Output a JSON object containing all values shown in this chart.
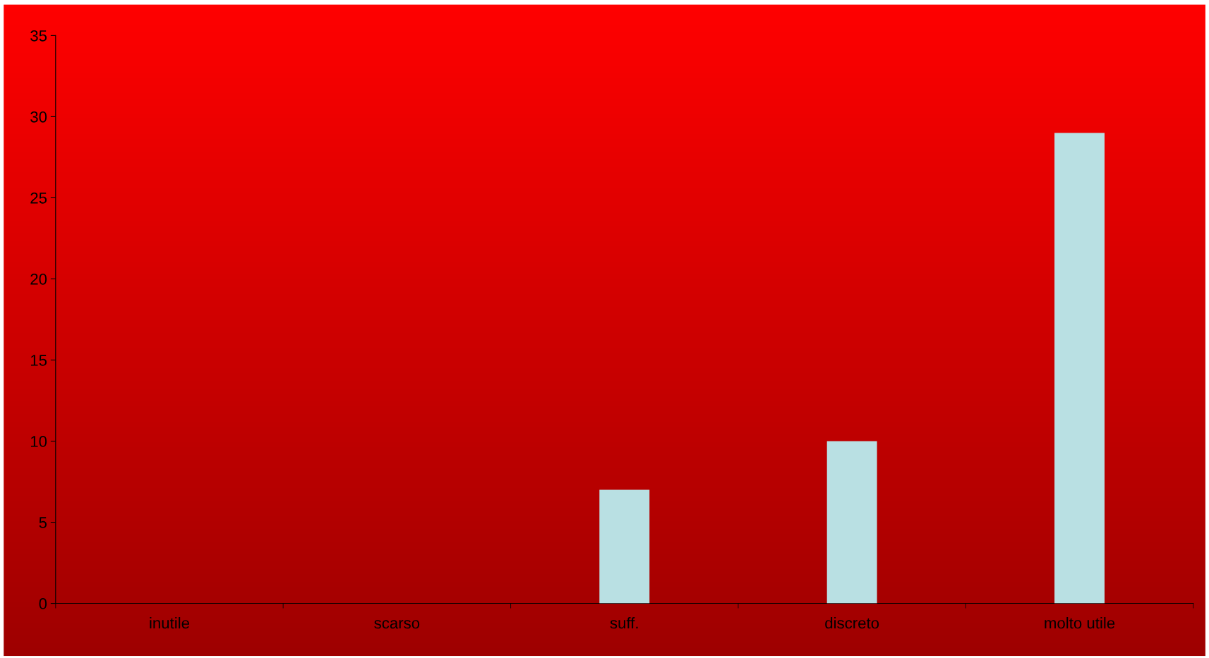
{
  "chart_data": {
    "type": "bar",
    "categories": [
      "inutile",
      "scarso",
      "suff.",
      "discreto",
      "molto utile"
    ],
    "values": [
      0,
      0,
      7,
      10,
      29
    ],
    "color": "#b9e0e3",
    "ylim": [
      0,
      35
    ],
    "yticks": [
      0,
      5,
      10,
      15,
      20,
      25,
      30,
      35
    ],
    "grid": false,
    "legend": false
  }
}
